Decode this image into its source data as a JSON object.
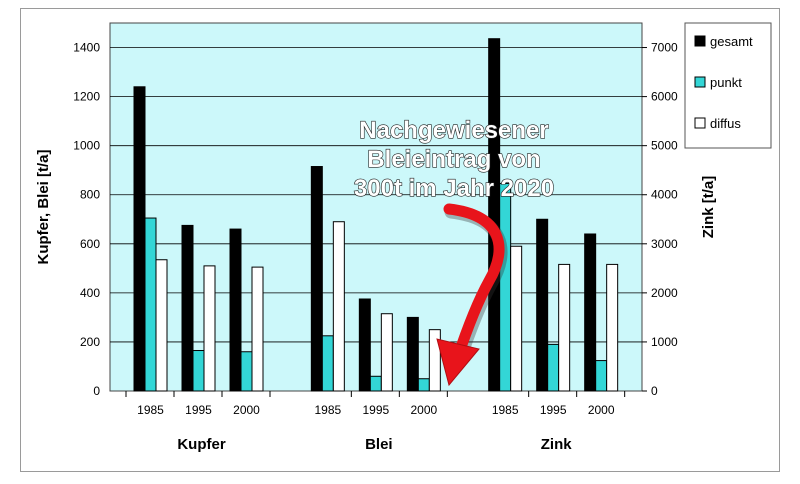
{
  "chart_data": {
    "type": "bar",
    "groups": [
      {
        "name": "Kupfer",
        "axis": "left",
        "categories": [
          "1985",
          "1995",
          "2000"
        ],
        "series": [
          {
            "name": "gesamt",
            "values": [
              1240,
              675,
              660
            ]
          },
          {
            "name": "punkt",
            "values": [
              705,
              165,
              160
            ]
          },
          {
            "name": "diffus",
            "values": [
              535,
              510,
              505
            ]
          }
        ]
      },
      {
        "name": "Blei",
        "axis": "left",
        "categories": [
          "1985",
          "1995",
          "2000"
        ],
        "series": [
          {
            "name": "gesamt",
            "values": [
              915,
              375,
              300
            ]
          },
          {
            "name": "punkt",
            "values": [
              225,
              60,
              50
            ]
          },
          {
            "name": "diffus",
            "values": [
              690,
              315,
              250
            ]
          }
        ]
      },
      {
        "name": "Zink",
        "axis": "right",
        "categories": [
          "1985",
          "1995",
          "2000"
        ],
        "series": [
          {
            "name": "gesamt",
            "values": [
              7180,
              3500,
              3200
            ]
          },
          {
            "name": "punkt",
            "values": [
              4230,
              950,
              620
            ]
          },
          {
            "name": "diffus",
            "values": [
              2950,
              2580,
              2580
            ]
          }
        ]
      }
    ],
    "left_axis": {
      "label": "Kupfer, Blei [t/a]",
      "ylim": [
        0,
        1500
      ],
      "ticks": [
        0,
        200,
        400,
        600,
        800,
        1000,
        1200,
        1400
      ]
    },
    "right_axis": {
      "label": "Zink [t/a]",
      "ylim": [
        0,
        7500
      ],
      "ticks": [
        0,
        1000,
        2000,
        3000,
        4000,
        5000,
        6000,
        7000
      ]
    },
    "legend": {
      "position": "top-right",
      "entries": [
        {
          "name": "gesamt",
          "color": "#000000"
        },
        {
          "name": "punkt",
          "color": "#33d6d6"
        },
        {
          "name": "diffus",
          "color": "#ffffff"
        }
      ]
    },
    "grid": true,
    "annotation": {
      "lines": [
        "Nachgewiesener",
        "Bleieintrag von",
        "300t im Jahr 2020"
      ]
    }
  },
  "colors": {
    "plot_background": "#ccf8fa",
    "arrow": "#e8141b",
    "gridline": "#000000"
  }
}
